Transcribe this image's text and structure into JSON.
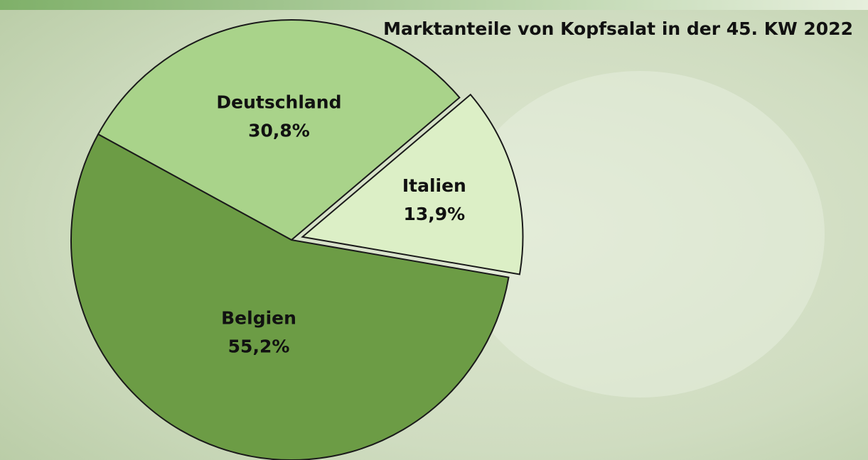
{
  "chart_data": {
    "type": "pie",
    "title": "Marktanteile von Kopfsalat in der 45. KW 2022",
    "categories": [
      "Deutschland",
      "Italien",
      "Belgien"
    ],
    "values": [
      30.8,
      13.9,
      55.2
    ],
    "value_labels": [
      "30,8%",
      "13,9%",
      "55,2%"
    ],
    "colors": [
      "#a9d38a",
      "#dcefc6",
      "#6c9c45"
    ],
    "exploded": [
      false,
      true,
      false
    ]
  }
}
